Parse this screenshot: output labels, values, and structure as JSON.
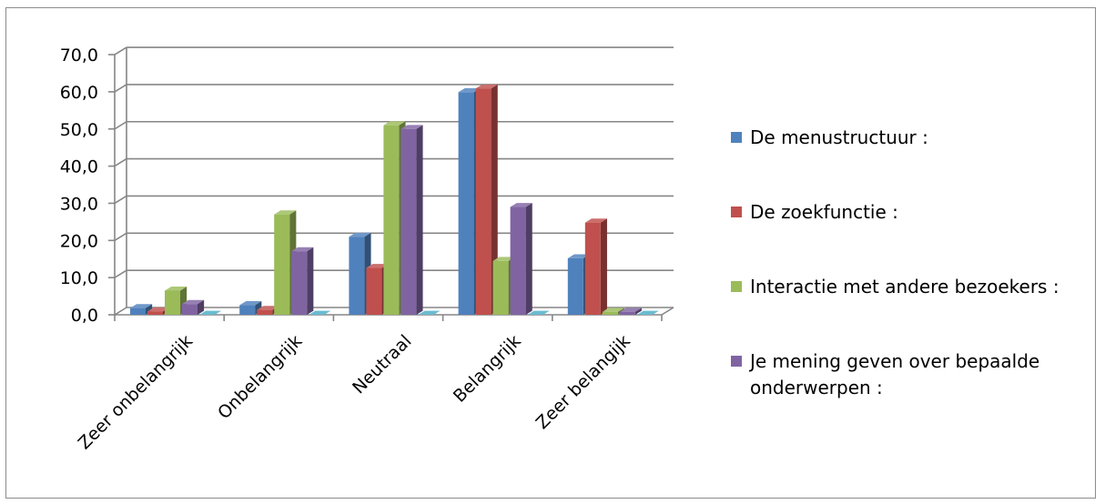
{
  "chart_data": {
    "type": "bar",
    "style": "3d-clustered-column",
    "categories": [
      "Zeer onbelangrijk",
      "Onbelangrijk",
      "Neutraal",
      "Belangrijk",
      "Zeer belangijk"
    ],
    "series": [
      {
        "name": "De menustructuur :",
        "color": "#4F81BD",
        "values": [
          1.8,
          2.6,
          21.0,
          59.9,
          15.2
        ]
      },
      {
        "name": "De zoekfunctie :",
        "color": "#C0504D",
        "values": [
          0.9,
          1.3,
          12.6,
          60.9,
          24.8
        ]
      },
      {
        "name": "Interactie met andere bezoekers :",
        "color": "#9BBB59",
        "values": [
          6.5,
          27.0,
          51.0,
          14.5,
          0.8
        ]
      },
      {
        "name": "Je mening geven over bepaalde onderwerpen :",
        "color": "#8064A2",
        "values": [
          2.9,
          17.1,
          50.0,
          29.0,
          0.8
        ]
      },
      {
        "name": "",
        "color": "#4BACC6",
        "values": [
          0.0,
          0.0,
          0.0,
          0.0,
          0.0
        ]
      }
    ],
    "ylim": [
      0,
      70
    ],
    "yticks": [
      "0,0",
      "10,0",
      "20,0",
      "30,0",
      "40,0",
      "50,0",
      "60,0",
      "70,0"
    ],
    "grid": true,
    "legend_position": "right",
    "legend": [
      {
        "label": "De menustructuur :",
        "color": "#4F81BD"
      },
      {
        "label": "De zoekfunctie :",
        "color": "#C0504D"
      },
      {
        "label": "Interactie met andere bezoekers :",
        "color": "#9BBB59"
      },
      {
        "label_lines": [
          "Je mening geven over bepaalde",
          "onderwerpen :"
        ],
        "color": "#8064A2"
      }
    ]
  }
}
